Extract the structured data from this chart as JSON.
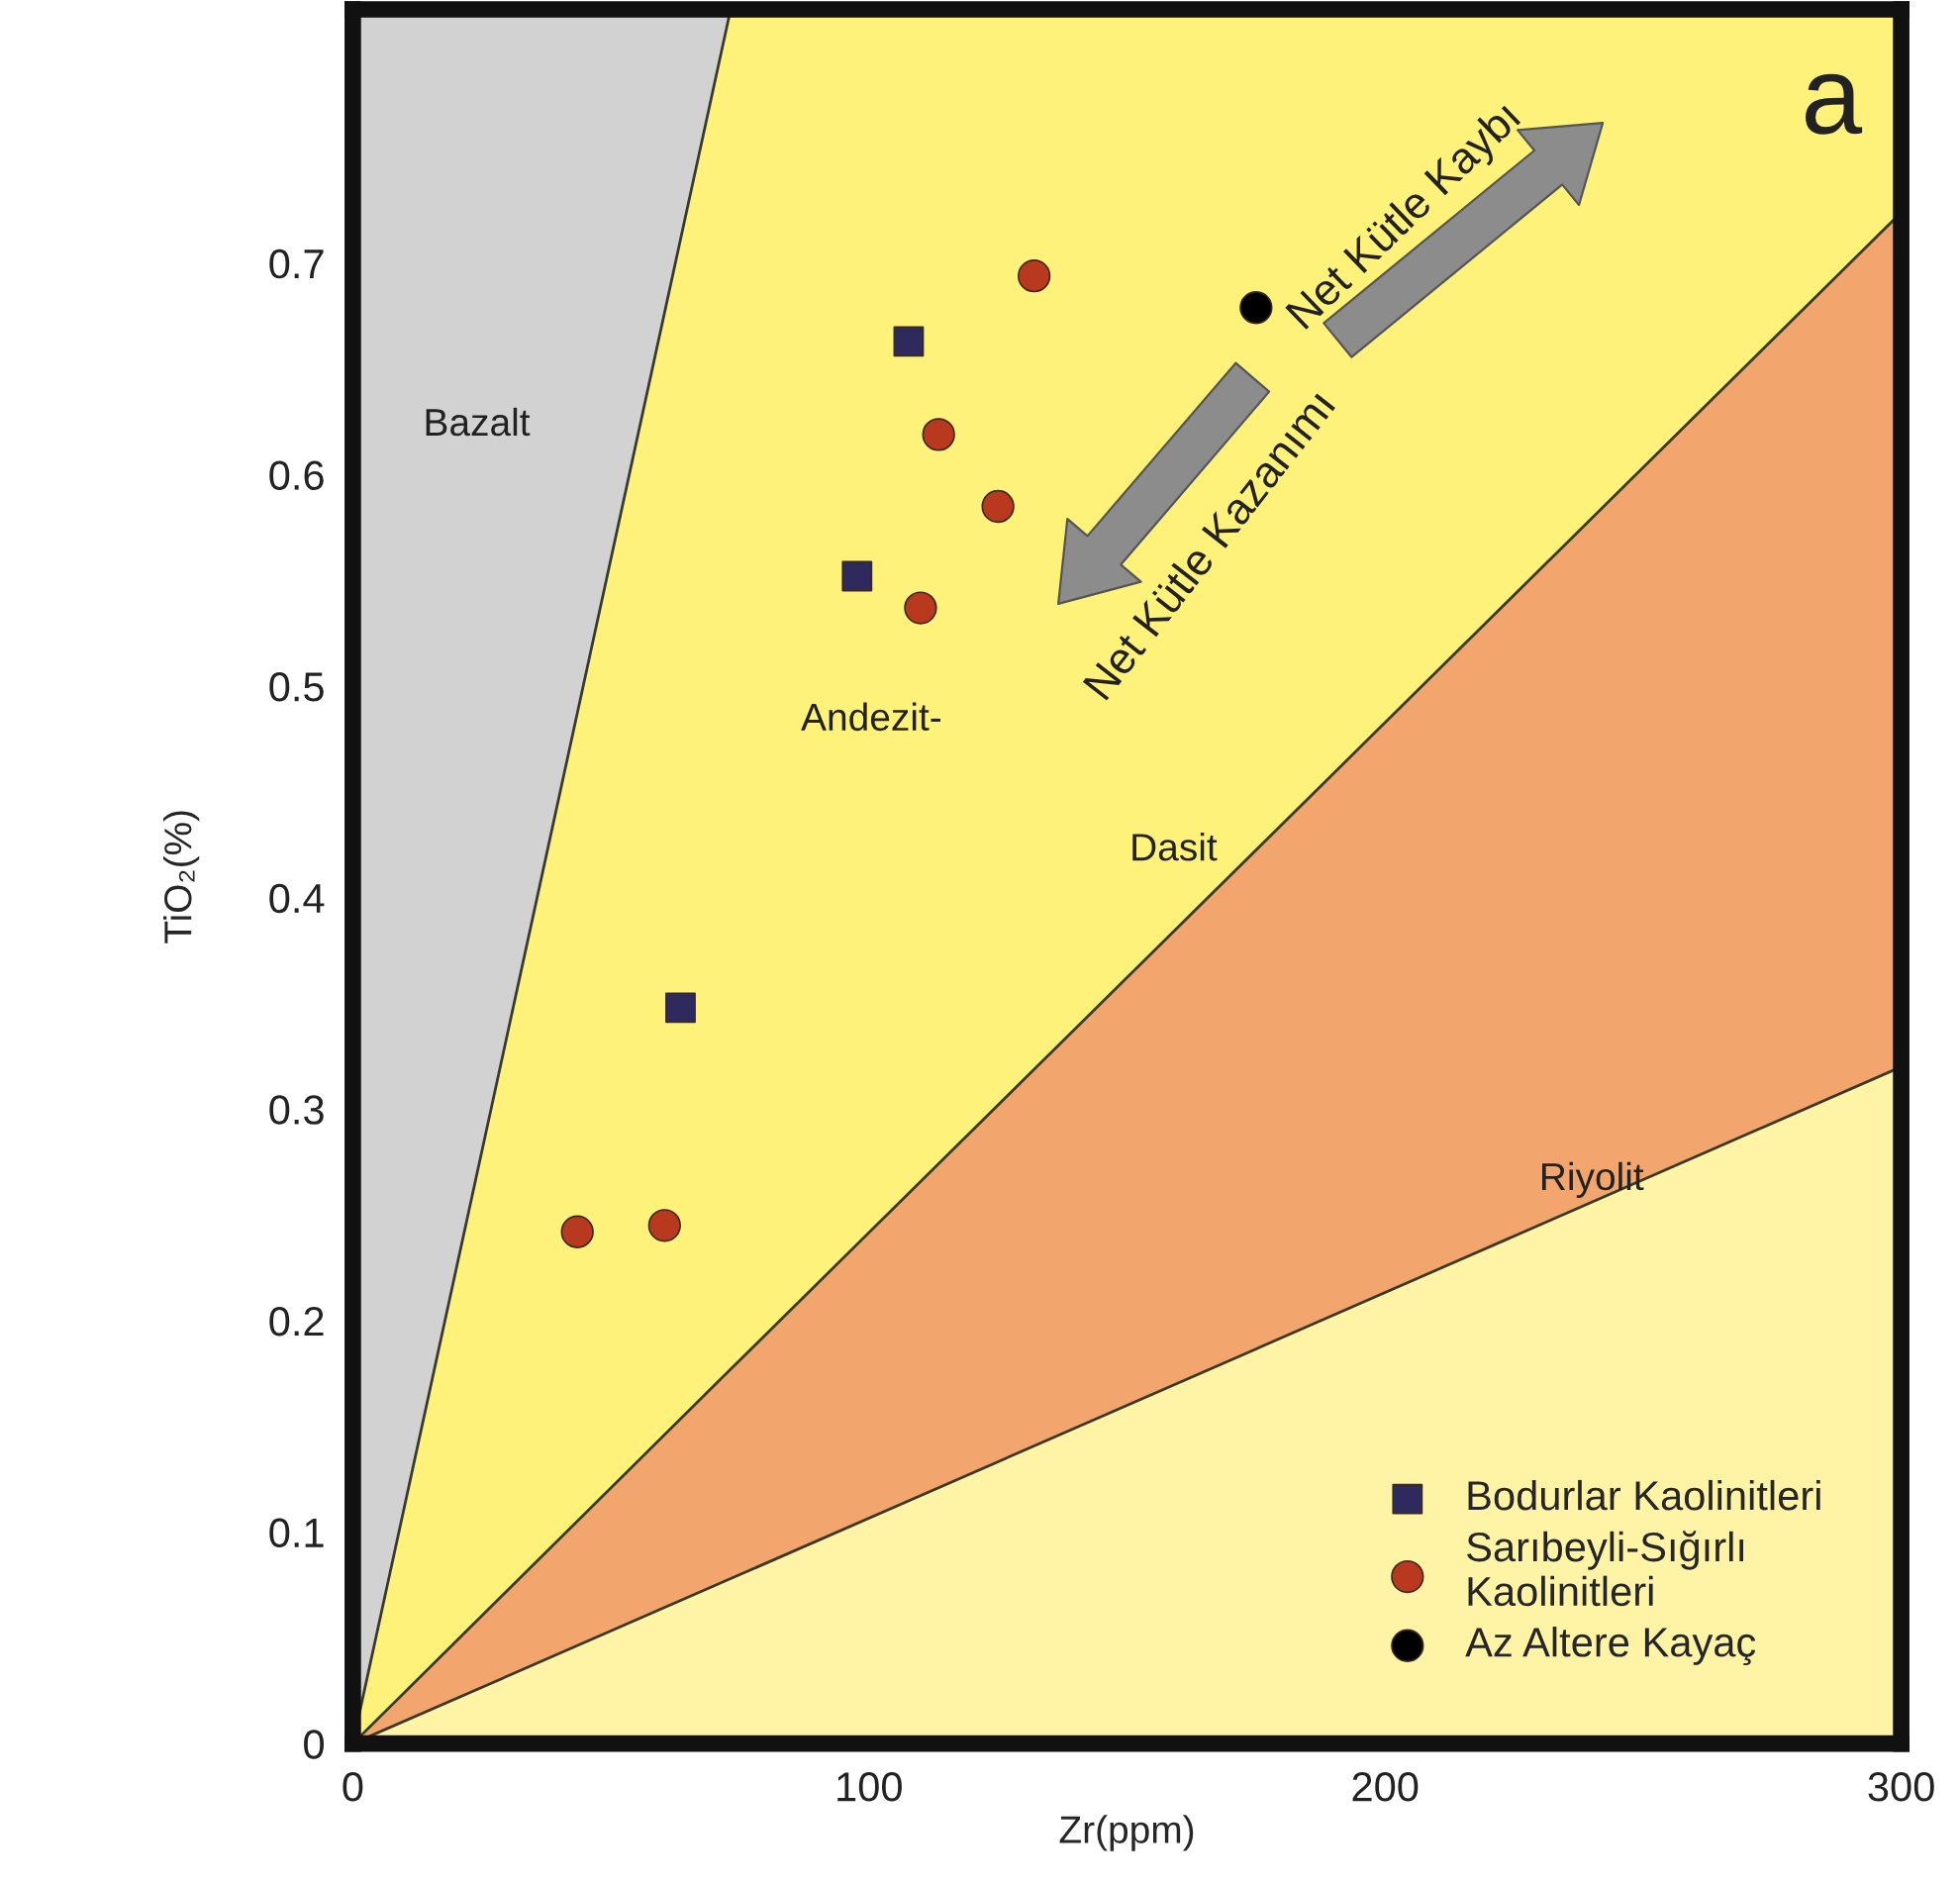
{
  "chart_data": {
    "type": "scatter",
    "xlabel": "Zr(ppm)",
    "ylabel": "TiO₂(%)",
    "xlim": [
      0,
      300
    ],
    "ylim": [
      0,
      0.82
    ],
    "xticks": [
      0,
      100,
      200,
      300
    ],
    "yticks": [
      0,
      0.1,
      0.2,
      0.3,
      0.4,
      0.5,
      0.6,
      0.7
    ],
    "legend": "bottom right",
    "stacked": true,
    "series": [
      {
        "type": "area",
        "color": "#fff4a6",
        "x": [
          0,
          73.2,
          300
        ],
        "values": [
          0,
          0.078,
          0.32
        ]
      },
      {
        "type": "area",
        "color": "#f3a56e",
        "x": [
          0,
          73.2,
          300
        ],
        "values": [
          0,
          0.099,
          0.404
        ]
      },
      {
        "type": "area",
        "color": "#fff27a",
        "x": [
          0,
          73.2,
          300
        ],
        "values": [
          0,
          0.643,
          0.096
        ]
      },
      {
        "type": "area",
        "color": "#d2d2d2",
        "x": [
          0,
          73.2
        ],
        "values": [
          0.82,
          0
        ]
      },
      {
        "name": "Bodurlar Kaolinitleri",
        "color": "#2e2a5e",
        "marker": "square",
        "x": [
          107.7,
          97.7,
          63.5
        ],
        "values": [
          0.663,
          0.552,
          0.348
        ]
      },
      {
        "name": "Sarıbeyli-Sığırlı\nKaolinitleri",
        "color": "#b8391e",
        "marker": "circle",
        "x": [
          132,
          113.5,
          125,
          110,
          43.5,
          60.4
        ],
        "values": [
          0.694,
          0.619,
          0.585,
          0.537,
          0.242,
          0.245
        ]
      },
      {
        "name": "Az Altere Kayaç",
        "color": "#000000",
        "marker": "circle",
        "x": [
          175
        ],
        "values": [
          0.679
        ]
      }
    ],
    "annotations": [
      "Bazalt",
      "Andezit-",
      "Dasit",
      "Riyolit",
      "a",
      "Net Kütle Kaybı",
      "Net Kütle Kazanımı"
    ]
  }
}
